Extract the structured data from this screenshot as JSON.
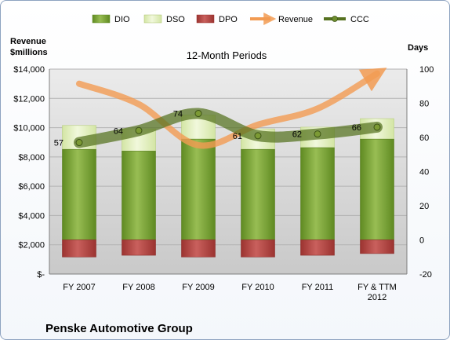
{
  "chart_data": {
    "type": "bar",
    "title": "12-Month Periods",
    "company": "Penske Automotive Group",
    "categories": [
      "FY 2007",
      "FY 2008",
      "FY 2009",
      "FY 2010",
      "FY 2011",
      "FY & TTM 2012"
    ],
    "left_axis": {
      "label_line1": "Revenue",
      "label_line2": "$millions",
      "range": [
        0,
        14000
      ],
      "ticks": [
        "$-",
        "$2,000",
        "$4,000",
        "$6,000",
        "$8,000",
        "$10,000",
        "$12,000",
        "$14,000"
      ]
    },
    "right_axis": {
      "label": "Days",
      "range": [
        -20,
        100
      ],
      "ticks": [
        "-20",
        "0",
        "20",
        "40",
        "60",
        "80",
        "100"
      ]
    },
    "series": [
      {
        "name": "DIO",
        "color": "#7fa23b",
        "axis": "right",
        "values": [
          53,
          52,
          59,
          53,
          54,
          59
        ]
      },
      {
        "name": "DSO",
        "color": "#e6f2c3",
        "axis": "right",
        "values": [
          14,
          13,
          14,
          12,
          12,
          12
        ]
      },
      {
        "name": "DPO",
        "color": "#c0504d",
        "axis": "right",
        "values": [
          -10,
          -9,
          -10,
          -10,
          -9,
          -8
        ]
      },
      {
        "name": "Revenue",
        "color": "#f29b52",
        "axis": "left",
        "values": [
          13000,
          11600,
          8800,
          10200,
          11300,
          13700
        ]
      },
      {
        "name": "CCC",
        "color": "#55711f",
        "axis": "right",
        "values": [
          57,
          64,
          74,
          61,
          62,
          66
        ],
        "labels": [
          "57",
          "64",
          "74",
          "61",
          "62",
          "66"
        ]
      }
    ],
    "grid": "horizontal",
    "legend": "top"
  }
}
